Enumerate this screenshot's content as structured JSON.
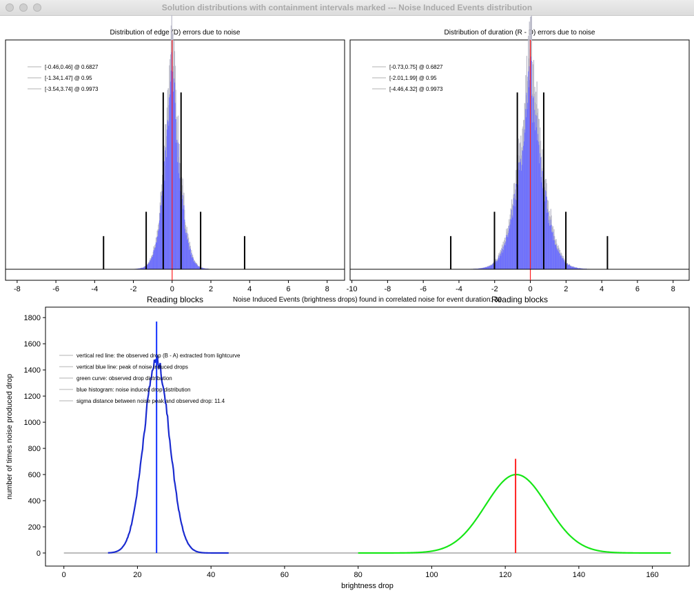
{
  "window": {
    "title": "Solution distributions with containment intervals marked --- Noise Induced Events distribution"
  },
  "chart_data": [
    {
      "type": "bar",
      "title": "Distribution of edge (D) errors due to noise",
      "xlabel": "Reading blocks",
      "ylabel": "",
      "xlim": [
        -8.6,
        8.9
      ],
      "x_ticks": [
        -8,
        -6,
        -4,
        -2,
        0,
        2,
        4,
        6,
        8
      ],
      "histogram": {
        "center": 0.0,
        "scale": 0.33,
        "peak": 1.0,
        "color": "#6a6cff"
      },
      "legend": [
        "[-0.46,0.46] @ 0.6827",
        "[-1.34,1.47] @ 0.95",
        "[-3.54,3.74] @ 0.9973"
      ],
      "intervals": [
        {
          "lo": -0.46,
          "hi": 0.46,
          "height": 0.8
        },
        {
          "lo": -1.34,
          "hi": 1.47,
          "height": 0.26
        },
        {
          "lo": -3.54,
          "hi": 3.74,
          "height": 0.15
        }
      ],
      "marker_x": 0
    },
    {
      "type": "bar",
      "title": "Distribution of duration (R - D) errors due to noise",
      "xlabel": "Reading blocks",
      "ylabel": "",
      "xlim": [
        -10.1,
        8.9
      ],
      "x_ticks": [
        -10,
        -8,
        -6,
        -4,
        -2,
        0,
        2,
        4,
        6,
        8
      ],
      "histogram": {
        "center": 0.0,
        "scale": 0.56,
        "peak": 0.96,
        "color": "#6a6cff"
      },
      "legend": [
        "[-0.73,0.75] @ 0.6827",
        "[-2.01,1.99] @ 0.95",
        "[-4.46,4.32] @ 0.9973"
      ],
      "intervals": [
        {
          "lo": -0.73,
          "hi": 0.75,
          "height": 0.8
        },
        {
          "lo": -2.01,
          "hi": 1.99,
          "height": 0.26
        },
        {
          "lo": -4.46,
          "hi": 4.32,
          "height": 0.15
        }
      ],
      "marker_x": 0
    },
    {
      "type": "line",
      "title": "Noise Induced Events (brightness drops) found in correlated noise for event duration: 30",
      "xlabel": "brightness drop",
      "ylabel": "number of times noise produced drop",
      "xlim": [
        -5,
        170
      ],
      "ylim": [
        -100,
        1880
      ],
      "x_ticks": [
        0,
        20,
        40,
        60,
        80,
        100,
        120,
        140,
        160
      ],
      "y_ticks": [
        0,
        200,
        400,
        600,
        800,
        1000,
        1200,
        1400,
        1600,
        1800
      ],
      "legend": [
        "vertical red line: the observed drop (B - A) extracted from lightcurve",
        "vertical blue line: peak of noise induced drops",
        "green curve: observed drop distribution",
        "blue histogram: noise induced drop distribution",
        "sigma distance between noise peak and observed drop: 11.4"
      ],
      "series": [
        {
          "name": "noise induced drop distribution",
          "color": "#1a2bd0",
          "mean": 25.2,
          "sd": 3.5,
          "peak": 1470,
          "x_range": [
            12,
            45
          ]
        },
        {
          "name": "observed drop distribution",
          "color": "#16e616",
          "mean": 123,
          "sd": 8.4,
          "peak": 600,
          "x_range": [
            80,
            165
          ]
        }
      ],
      "baseline": {
        "color": "#bbbbbb",
        "x_range": [
          0,
          165
        ]
      },
      "red_line": {
        "x": 122.8,
        "y_top": 720
      },
      "blue_line": {
        "x": 25.2,
        "y_top": 1770
      }
    }
  ]
}
